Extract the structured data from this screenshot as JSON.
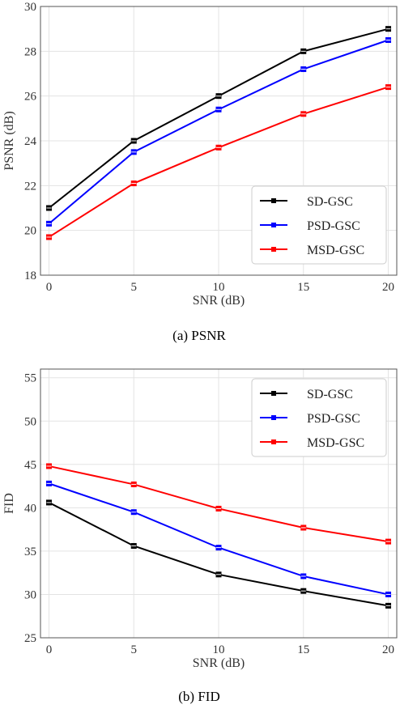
{
  "chart_data": [
    {
      "type": "line",
      "caption": "(a)  PSNR",
      "xlabel": "SNR (dB)",
      "ylabel": "PSNR (dB)",
      "x": [
        0,
        5,
        10,
        15,
        20
      ],
      "xlim": [
        -0.5,
        20.5
      ],
      "ylim": [
        18,
        30
      ],
      "xticks": [
        "0",
        "5",
        "10",
        "15",
        "20"
      ],
      "yticks": [
        "18",
        "20",
        "22",
        "24",
        "26",
        "28",
        "30"
      ],
      "grid": true,
      "legend_position": "lower-right",
      "series": [
        {
          "name": "SD-GSC",
          "color": "#000000",
          "values": [
            21.0,
            24.0,
            26.0,
            28.0,
            29.0
          ]
        },
        {
          "name": "PSD-GSC",
          "color": "#0000ff",
          "values": [
            20.3,
            23.5,
            25.4,
            27.2,
            28.5
          ]
        },
        {
          "name": "MSD-GSC",
          "color": "#ff0000",
          "values": [
            19.7,
            22.1,
            23.7,
            25.2,
            26.4
          ]
        }
      ]
    },
    {
      "type": "line",
      "caption": "(b)  FID",
      "xlabel": "SNR (dB)",
      "ylabel": "FID",
      "x": [
        0,
        5,
        10,
        15,
        20
      ],
      "xlim": [
        -0.5,
        20.5
      ],
      "ylim": [
        25,
        56
      ],
      "xticks": [
        "0",
        "5",
        "10",
        "15",
        "20"
      ],
      "yticks": [
        "25",
        "30",
        "35",
        "40",
        "45",
        "50",
        "55"
      ],
      "grid": true,
      "legend_position": "upper-right",
      "series": [
        {
          "name": "SD-GSC",
          "color": "#000000",
          "values": [
            40.6,
            35.6,
            32.3,
            30.4,
            28.7
          ]
        },
        {
          "name": "PSD-GSC",
          "color": "#0000ff",
          "values": [
            42.8,
            39.5,
            35.4,
            32.1,
            30.0
          ]
        },
        {
          "name": "MSD-GSC",
          "color": "#ff0000",
          "values": [
            44.8,
            42.7,
            39.9,
            37.7,
            36.1
          ]
        }
      ]
    }
  ]
}
